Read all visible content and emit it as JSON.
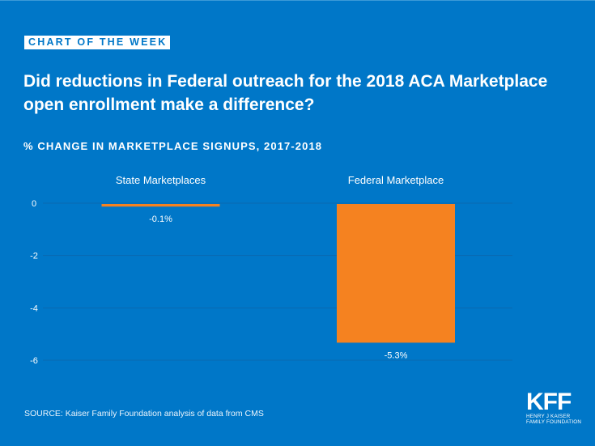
{
  "header": {
    "badge": "CHART OF THE WEEK",
    "title": "Did reductions in Federal outreach for the 2018 ACA Marketplace open enrollment make a difference?",
    "subtitle": "% CHANGE IN MARKETPLACE SIGNUPS, 2017-2018"
  },
  "footer": {
    "source": "SOURCE: Kaiser Family Foundation analysis of data from CMS",
    "logo_main": "KFF",
    "logo_line1": "HENRY J KAISER",
    "logo_line2": "FAMILY FOUNDATION"
  },
  "colors": {
    "background": "#0077c8",
    "bar": "#f58220",
    "gridline": "#0a69b0",
    "text": "#ffffff"
  },
  "chart_data": {
    "type": "bar",
    "title": "% CHANGE IN MARKETPLACE SIGNUPS, 2017-2018",
    "categories": [
      "State Marketplaces",
      "Federal Marketplace"
    ],
    "values": [
      -0.1,
      -5.3
    ],
    "data_labels": [
      "-0.1%",
      "-5.3%"
    ],
    "xlabel": "",
    "ylabel": "",
    "ylim": [
      -6,
      0
    ],
    "yticks": [
      0,
      -2,
      -4,
      -6
    ],
    "ytick_labels": [
      "0",
      "-2",
      "-4",
      "-6"
    ],
    "grid": true,
    "category_labels_position": "top",
    "legend": "none"
  }
}
